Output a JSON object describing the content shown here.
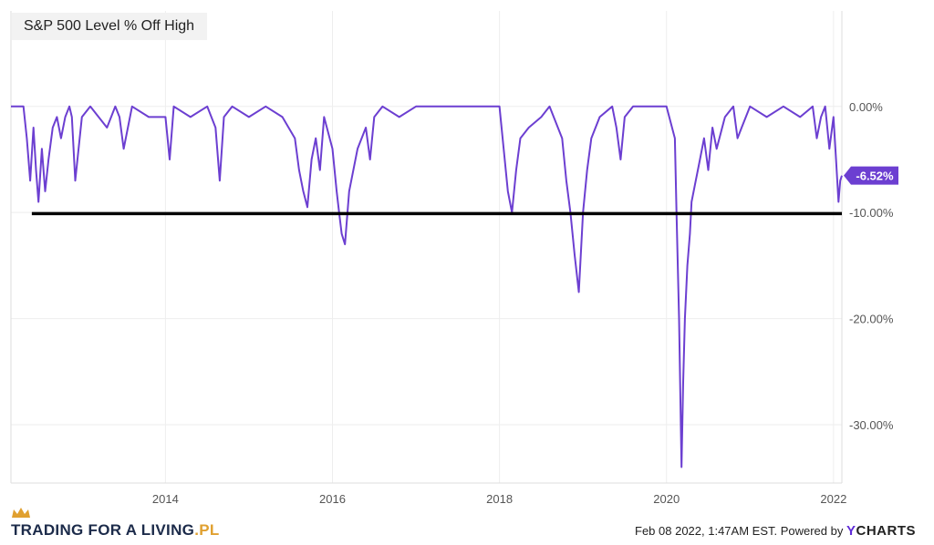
{
  "chart_data": {
    "type": "line",
    "legend_title": "S&P 500 Level % Off High",
    "x_ticks": [
      "2014",
      "2016",
      "2018",
      "2020",
      "2022"
    ],
    "y_ticks": [
      "0.00%",
      "-10.00%",
      "-20.00%",
      "-30.00%"
    ],
    "y_tick_values": [
      0,
      -10,
      -20,
      -30
    ],
    "xlim": [
      2012.15,
      2022.1
    ],
    "ylim": [
      -35.5,
      9
    ],
    "grid": true,
    "current_label": "-6.52%",
    "current_value": -6.52,
    "reference_line": {
      "value": -10.1,
      "from": 2012.4,
      "to": 2022.1
    },
    "series": [
      {
        "color": "#6c3fd1",
        "x": [
          2012.15,
          2012.3,
          2012.34,
          2012.38,
          2012.42,
          2012.45,
          2012.48,
          2012.52,
          2012.56,
          2012.6,
          2012.65,
          2012.7,
          2012.75,
          2012.8,
          2012.85,
          2012.88,
          2012.92,
          2013.0,
          2013.1,
          2013.3,
          2013.4,
          2013.45,
          2013.5,
          2013.6,
          2013.8,
          2014.0,
          2014.05,
          2014.1,
          2014.3,
          2014.5,
          2014.6,
          2014.65,
          2014.7,
          2014.8,
          2015.0,
          2015.2,
          2015.4,
          2015.55,
          2015.6,
          2015.65,
          2015.7,
          2015.75,
          2015.8,
          2015.85,
          2015.9,
          2016.0,
          2016.05,
          2016.08,
          2016.11,
          2016.15,
          2016.2,
          2016.3,
          2016.4,
          2016.45,
          2016.5,
          2016.6,
          2016.8,
          2017.0,
          2017.5,
          2018.0,
          2018.05,
          2018.1,
          2018.15,
          2018.2,
          2018.25,
          2018.35,
          2018.5,
          2018.6,
          2018.75,
          2018.8,
          2018.85,
          2018.9,
          2018.95,
          2019.0,
          2019.05,
          2019.1,
          2019.2,
          2019.35,
          2019.4,
          2019.45,
          2019.5,
          2019.6,
          2019.8,
          2020.0,
          2020.1,
          2020.12,
          2020.15,
          2020.18,
          2020.2,
          2020.22,
          2020.25,
          2020.28,
          2020.3,
          2020.35,
          2020.4,
          2020.45,
          2020.5,
          2020.55,
          2020.6,
          2020.7,
          2020.8,
          2020.85,
          2020.9,
          2021.0,
          2021.2,
          2021.4,
          2021.6,
          2021.75,
          2021.8,
          2021.85,
          2021.9,
          2021.95,
          2022.0,
          2022.03,
          2022.06,
          2022.08,
          2022.1
        ],
        "y": [
          0,
          0,
          -3,
          -7,
          -2,
          -6,
          -9,
          -4,
          -8,
          -5,
          -2,
          -1,
          -3,
          -1,
          0,
          -1,
          -7,
          -1,
          0,
          -2,
          0,
          -1,
          -4,
          0,
          -1,
          -1,
          -5,
          0,
          -1,
          0,
          -2,
          -7,
          -1,
          0,
          -1,
          0,
          -1,
          -3,
          -6,
          -8,
          -9.5,
          -5,
          -3,
          -6,
          -1,
          -4,
          -8,
          -10,
          -12,
          -13,
          -8,
          -4,
          -2,
          -5,
          -1,
          0,
          -1,
          0,
          0,
          0,
          -4,
          -8,
          -10,
          -6,
          -3,
          -2,
          -1,
          0,
          -3,
          -7,
          -10,
          -14,
          -17.5,
          -10,
          -6,
          -3,
          -1,
          0,
          -2,
          -5,
          -1,
          0,
          0,
          0,
          -3,
          -10,
          -20,
          -34,
          -26,
          -20,
          -15,
          -12,
          -9,
          -7,
          -5,
          -3,
          -6,
          -2,
          -4,
          -1,
          0,
          -3,
          -2,
          0,
          -1,
          0,
          -1,
          0,
          -3,
          -1,
          0,
          -4,
          -1,
          -5,
          -9,
          -7,
          -6.52
        ]
      }
    ]
  },
  "brand": {
    "text": "TRADING FOR A LIVING",
    "suffix": ".PL"
  },
  "footer": {
    "text": "Feb 08 2022, 1:47AM EST. Powered by",
    "logo_y": "Y",
    "logo_rest": "CHARTS"
  }
}
